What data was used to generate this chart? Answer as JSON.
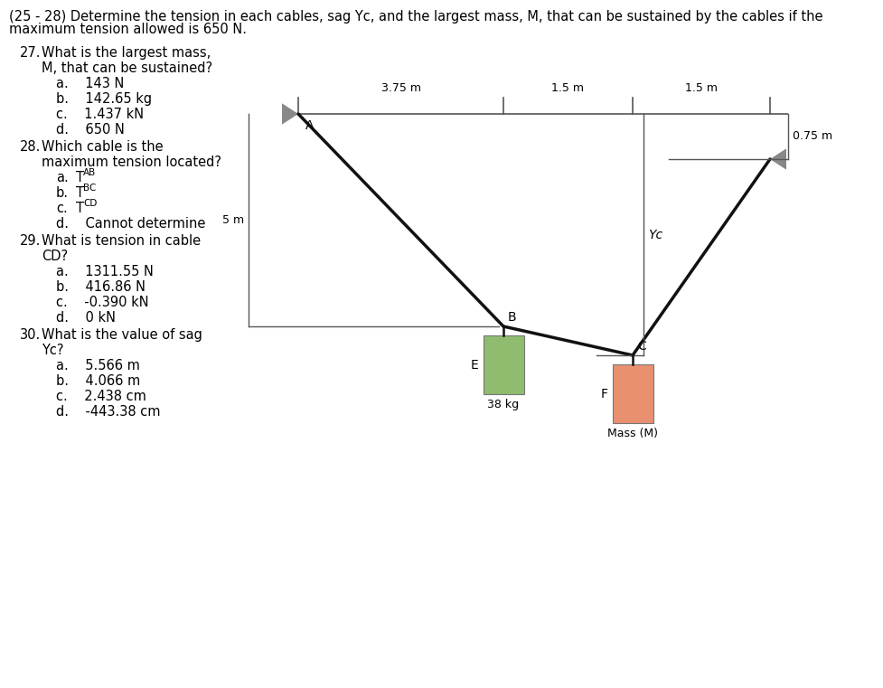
{
  "title_line1": "(25 - 28) Determine the tension in each cables, sag Yc, and the largest mass, M, that can be sustained by the cables if the",
  "title_line2": "maximum tension allowed is 650 N.",
  "q27_num": "27.",
  "q27_text1": "What is the largest mass,",
  "q27_text2": "M, that can be sustained?",
  "q27_choices": [
    "a.    143 N",
    "b.    142.65 kg",
    "c.    1.437 kN",
    "d.    650 N"
  ],
  "q28_num": "28.",
  "q28_text1": "Which cable is the",
  "q28_text2": "maximum tension located?",
  "q28_choices_plain": [
    "a.",
    "b.",
    "c.",
    "d.    Cannot determine"
  ],
  "q28_T": [
    "T",
    "T",
    "T"
  ],
  "q28_sub": [
    "AB",
    "BC",
    "CD"
  ],
  "q29_num": "29.",
  "q29_text1": "What is tension in cable",
  "q29_text2": "CD?",
  "q29_choices": [
    "a.    1311.55 N",
    "b.    416.86 N",
    "c.    -0.390 kN",
    "d.    0 kN"
  ],
  "q30_num": "30.",
  "q30_text1": "What is the value of sag",
  "q30_text2": "Yc?",
  "q30_choices": [
    "a.    5.566 m",
    "b.    4.066 m",
    "c.    2.438 cm",
    "d.    -443.38 cm"
  ],
  "dim_375": "3.75 m",
  "dim_15a": "1.5 m",
  "dim_15b": "1.5 m",
  "dim_5": "5 m",
  "dim_yc": "Yc",
  "dim_075": "0.75 m",
  "label_A": "A",
  "label_B": "B",
  "label_C": "C",
  "label_E": "E",
  "label_F": "F",
  "label_38kg": "38 kg",
  "label_massM": "Mass (M)",
  "box_E_color": "#8fbc6e",
  "box_F_color": "#e89070",
  "cable_color": "#111111",
  "dim_color": "#555555",
  "tri_color": "#888888",
  "bg_color": "#ffffff"
}
